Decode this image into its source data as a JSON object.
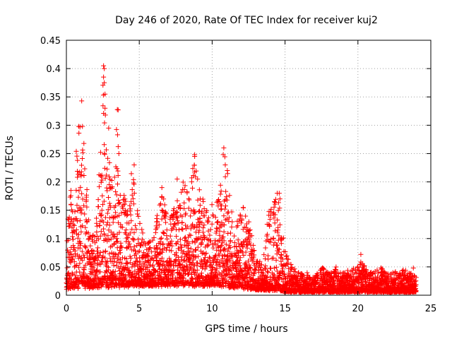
{
  "chart_data": {
    "type": "scatter",
    "title": "Day 246 of 2020, Rate Of TEC Index for receiver kuj2",
    "xlabel": "GPS time / hours",
    "ylabel": "ROTI / TECUs",
    "xlim": [
      0,
      25
    ],
    "ylim": [
      0,
      0.45
    ],
    "xticks": [
      0,
      5,
      10,
      15,
      20,
      25
    ],
    "yticks": [
      0,
      0.05,
      0.1,
      0.15,
      0.2,
      0.25,
      0.3,
      0.35,
      0.4,
      0.45
    ],
    "xtick_labels": [
      "0",
      "5",
      "10",
      "15",
      "20",
      "25"
    ],
    "ytick_labels": [
      "0",
      "0.05",
      "0.1",
      "0.15",
      "0.2",
      "0.25",
      "0.3",
      "0.35",
      "0.4",
      "0.45"
    ],
    "grid": true,
    "marker": "+",
    "color": "#ff0000",
    "envelope": [
      [
        0.0,
        0.1
      ],
      [
        0.25,
        0.2
      ],
      [
        0.5,
        0.14
      ],
      [
        0.75,
        0.3
      ],
      [
        1.0,
        0.3
      ],
      [
        1.25,
        0.26
      ],
      [
        1.5,
        0.15
      ],
      [
        1.75,
        0.1
      ],
      [
        2.0,
        0.12
      ],
      [
        2.25,
        0.22
      ],
      [
        2.5,
        0.4
      ],
      [
        2.75,
        0.3
      ],
      [
        3.0,
        0.22
      ],
      [
        3.25,
        0.18
      ],
      [
        3.5,
        0.33
      ],
      [
        3.75,
        0.14
      ],
      [
        4.0,
        0.19
      ],
      [
        4.25,
        0.14
      ],
      [
        4.5,
        0.23
      ],
      [
        4.75,
        0.17
      ],
      [
        5.0,
        0.13
      ],
      [
        5.5,
        0.09
      ],
      [
        6.0,
        0.1
      ],
      [
        6.5,
        0.19
      ],
      [
        7.0,
        0.13
      ],
      [
        7.5,
        0.16
      ],
      [
        8.0,
        0.2
      ],
      [
        8.5,
        0.18
      ],
      [
        8.75,
        0.25
      ],
      [
        9.0,
        0.2
      ],
      [
        9.5,
        0.16
      ],
      [
        10.0,
        0.16
      ],
      [
        10.5,
        0.17
      ],
      [
        10.75,
        0.26
      ],
      [
        11.0,
        0.23
      ],
      [
        11.5,
        0.11
      ],
      [
        12.0,
        0.16
      ],
      [
        12.5,
        0.14
      ],
      [
        13.0,
        0.06
      ],
      [
        13.5,
        0.06
      ],
      [
        14.0,
        0.18
      ],
      [
        14.5,
        0.18
      ],
      [
        14.75,
        0.13
      ],
      [
        15.0,
        0.08
      ],
      [
        15.5,
        0.05
      ],
      [
        16.0,
        0.04
      ],
      [
        16.5,
        0.04
      ],
      [
        17.0,
        0.03
      ],
      [
        17.5,
        0.05
      ],
      [
        18.0,
        0.04
      ],
      [
        18.5,
        0.05
      ],
      [
        19.0,
        0.04
      ],
      [
        19.5,
        0.05
      ],
      [
        20.0,
        0.05
      ],
      [
        20.25,
        0.07
      ],
      [
        20.5,
        0.05
      ],
      [
        21.0,
        0.04
      ],
      [
        21.5,
        0.05
      ],
      [
        22.0,
        0.04
      ],
      [
        22.5,
        0.04
      ],
      [
        23.0,
        0.05
      ],
      [
        23.5,
        0.04
      ],
      [
        23.9,
        0.04
      ]
    ],
    "floor": [
      [
        0.0,
        0.01
      ],
      [
        5.0,
        0.015
      ],
      [
        10.0,
        0.015
      ],
      [
        12.5,
        0.01
      ],
      [
        15.0,
        0.005
      ],
      [
        24.0,
        0.005
      ]
    ],
    "points": [
      [
        2.55,
        0.405
      ],
      [
        2.6,
        0.4
      ],
      [
        2.55,
        0.385
      ],
      [
        2.6,
        0.375
      ],
      [
        2.65,
        0.355
      ],
      [
        1.05,
        0.343
      ],
      [
        2.65,
        0.33
      ],
      [
        3.55,
        0.327
      ],
      [
        0.85,
        0.298
      ],
      [
        1.1,
        0.298
      ],
      [
        2.9,
        0.295
      ],
      [
        3.6,
        0.25
      ],
      [
        8.8,
        0.248
      ],
      [
        8.8,
        0.245
      ],
      [
        10.8,
        0.26
      ],
      [
        10.9,
        0.23
      ],
      [
        4.65,
        0.23
      ],
      [
        14.6,
        0.18
      ],
      [
        14.65,
        0.17
      ],
      [
        7.6,
        0.205
      ],
      [
        9.0,
        0.205
      ],
      [
        8.6,
        0.2
      ],
      [
        6.55,
        0.19
      ],
      [
        20.2,
        0.072
      ],
      [
        23.8,
        0.048
      ]
    ],
    "x_range": [
      0,
      24
    ]
  }
}
